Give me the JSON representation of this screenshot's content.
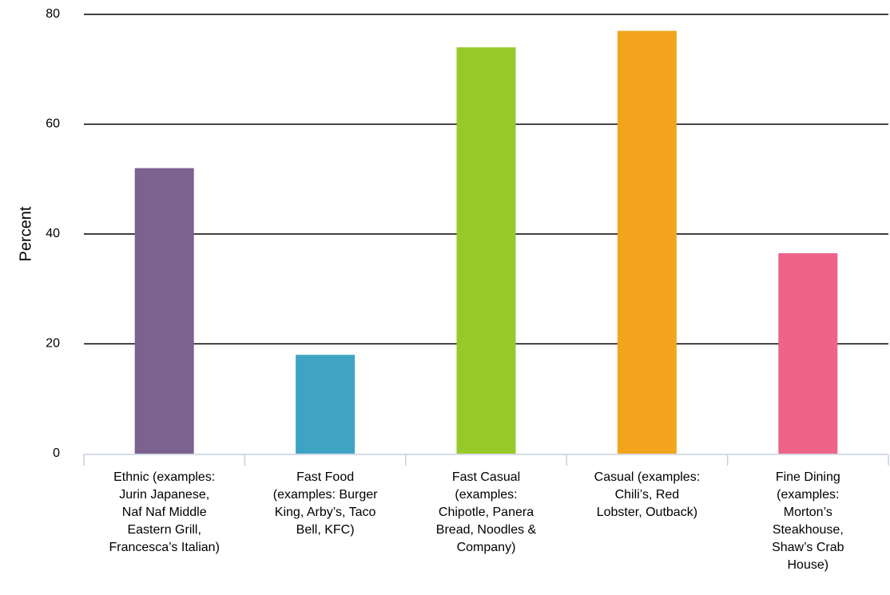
{
  "chart_data": {
    "type": "bar",
    "ylabel": "Percent",
    "ylim": [
      0,
      80
    ],
    "yticks": [
      0,
      20,
      40,
      60,
      80
    ],
    "grid": true,
    "categories": [
      "Ethnic (examples: Jurin Japanese, Naf Naf Middle Eastern Grill, Francesca’s Italian)",
      "Fast Food (examples: Burger King, Arby’s, Taco Bell, KFC)",
      "Fast Casual (examples: Chipotle, Panera Bread, Noodles & Company)",
      "Casual (examples: Chili’s, Red Lobster, Outback)",
      "Fine Dining (examples: Morton’s Steakhouse, Shaw’s Crab House)"
    ],
    "category_lines": [
      "Ethnic (examples:\nJurin Japanese,\nNaf Naf Middle\nEastern Grill,\nFrancesca’s Italian)",
      "Fast Food\n(examples: Burger\nKing, Arby’s, Taco\nBell, KFC)",
      "Fast Casual\n(examples:\nChipotle, Panera\nBread, Noodles &\nCompany)",
      "Casual (examples:\nChili’s, Red\nLobster, Outback)",
      "Fine Dining\n(examples:\nMorton’s\nSteakhouse,\nShaw’s Crab\nHouse)"
    ],
    "values": [
      52,
      18,
      74,
      77,
      36.5
    ],
    "colors": [
      "#7b628f",
      "#3fa4c3",
      "#97c92a",
      "#f2a51c",
      "#ee6388"
    ]
  }
}
